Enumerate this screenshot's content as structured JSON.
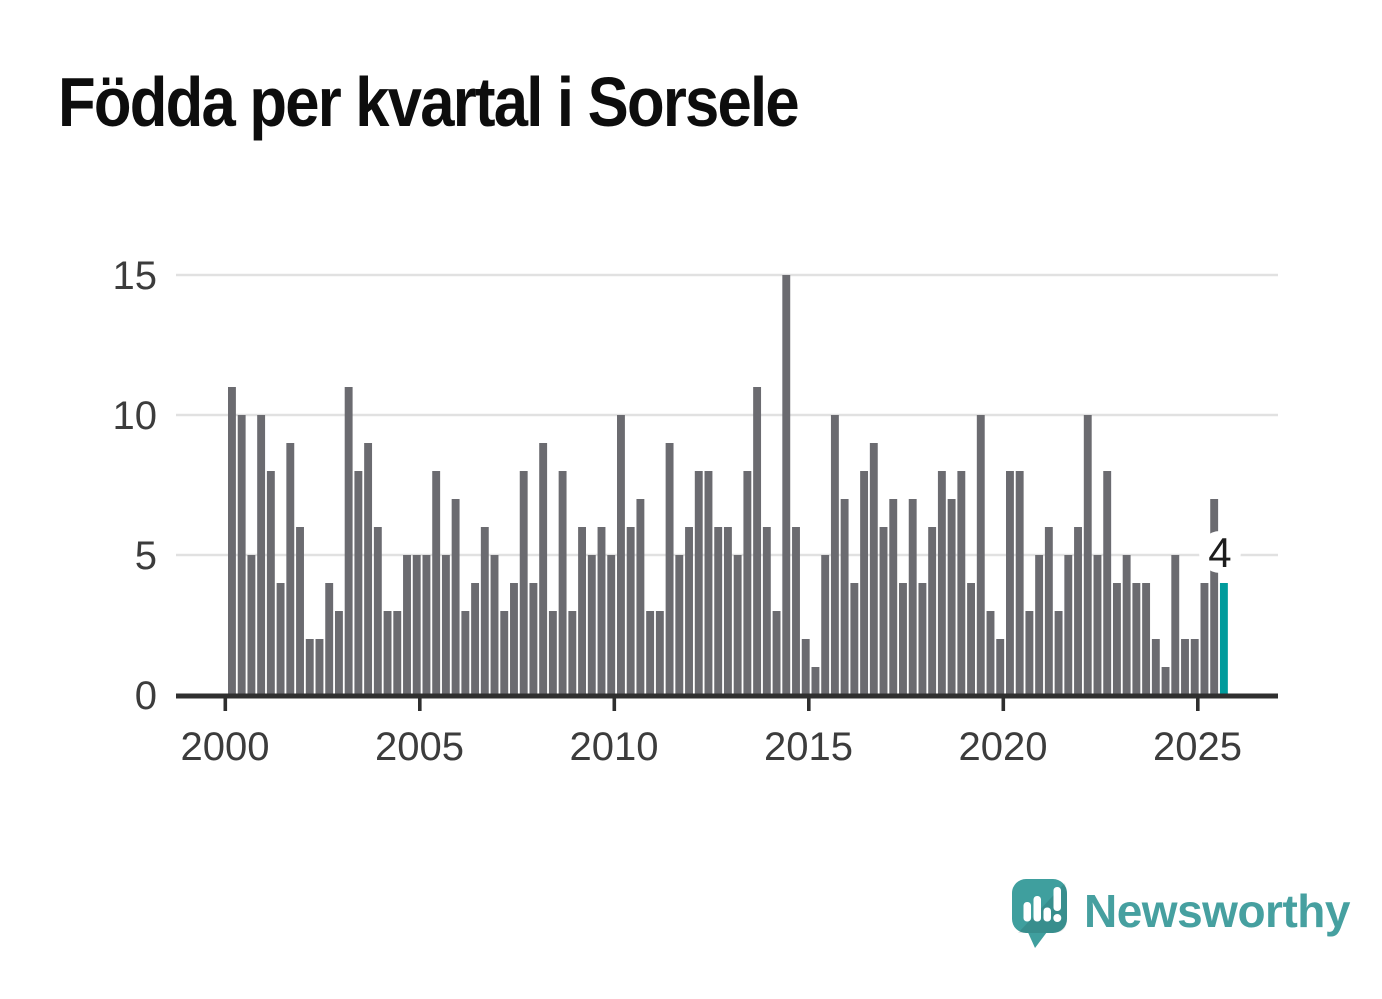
{
  "header": {
    "title": "Födda per kvartal i Sorsele"
  },
  "chart_data": {
    "type": "bar",
    "title": "Födda per kvartal i Sorsele",
    "xlabel": "",
    "ylabel": "",
    "frequency": "quarterly",
    "categories": [
      "2000-Q1",
      "2000-Q2",
      "2000-Q3",
      "2000-Q4",
      "2001-Q1",
      "2001-Q2",
      "2001-Q3",
      "2001-Q4",
      "2002-Q1",
      "2002-Q2",
      "2002-Q3",
      "2002-Q4",
      "2003-Q1",
      "2003-Q2",
      "2003-Q3",
      "2003-Q4",
      "2004-Q1",
      "2004-Q2",
      "2004-Q3",
      "2004-Q4",
      "2005-Q1",
      "2005-Q2",
      "2005-Q3",
      "2005-Q4",
      "2006-Q1",
      "2006-Q2",
      "2006-Q3",
      "2006-Q4",
      "2007-Q1",
      "2007-Q2",
      "2007-Q3",
      "2007-Q4",
      "2008-Q1",
      "2008-Q2",
      "2008-Q3",
      "2008-Q4",
      "2009-Q1",
      "2009-Q2",
      "2009-Q3",
      "2009-Q4",
      "2010-Q1",
      "2010-Q2",
      "2010-Q3",
      "2010-Q4",
      "2011-Q1",
      "2011-Q2",
      "2011-Q3",
      "2011-Q4",
      "2012-Q1",
      "2012-Q2",
      "2012-Q3",
      "2012-Q4",
      "2013-Q1",
      "2013-Q2",
      "2013-Q3",
      "2013-Q4",
      "2014-Q1",
      "2014-Q2",
      "2014-Q3",
      "2014-Q4",
      "2015-Q1",
      "2015-Q2",
      "2015-Q3",
      "2015-Q4",
      "2016-Q1",
      "2016-Q2",
      "2016-Q3",
      "2016-Q4",
      "2017-Q1",
      "2017-Q2",
      "2017-Q3",
      "2017-Q4",
      "2018-Q1",
      "2018-Q2",
      "2018-Q3",
      "2018-Q4",
      "2019-Q1",
      "2019-Q2",
      "2019-Q3",
      "2019-Q4",
      "2020-Q1",
      "2020-Q2",
      "2020-Q3",
      "2020-Q4",
      "2021-Q1",
      "2021-Q2",
      "2021-Q3",
      "2021-Q4",
      "2022-Q1",
      "2022-Q2",
      "2022-Q3",
      "2022-Q4",
      "2023-Q1",
      "2023-Q2",
      "2023-Q3",
      "2023-Q4",
      "2024-Q1",
      "2024-Q2",
      "2024-Q3",
      "2024-Q4",
      "2025-Q1",
      "2025-Q2",
      "2025-Q3"
    ],
    "values": [
      11,
      10,
      5,
      10,
      8,
      4,
      9,
      6,
      2,
      2,
      4,
      3,
      11,
      8,
      9,
      6,
      3,
      3,
      5,
      5,
      5,
      8,
      5,
      7,
      3,
      4,
      6,
      5,
      3,
      4,
      8,
      4,
      9,
      3,
      8,
      3,
      6,
      5,
      6,
      5,
      10,
      6,
      7,
      3,
      3,
      9,
      5,
      6,
      8,
      8,
      6,
      6,
      5,
      8,
      11,
      6,
      3,
      15,
      6,
      2,
      1,
      5,
      10,
      7,
      4,
      8,
      9,
      6,
      7,
      4,
      7,
      4,
      6,
      8,
      7,
      8,
      4,
      10,
      3,
      2,
      8,
      8,
      3,
      5,
      6,
      3,
      5,
      6,
      10,
      5,
      8,
      4,
      5,
      4,
      4,
      2,
      1,
      5,
      2,
      2,
      4,
      7,
      4
    ],
    "ylim": [
      0,
      15
    ],
    "yticks": [
      0,
      5,
      10,
      15
    ],
    "xticks": [
      "2000",
      "2005",
      "2010",
      "2015",
      "2020",
      "2025"
    ],
    "grid": "horizontal",
    "legend": "none",
    "highlight": {
      "category": "2025-Q3",
      "index": 102,
      "value": 4,
      "label": "4"
    },
    "colors": {
      "bar": "#6b6b70",
      "accent": "#009b9c",
      "axis": "#2f2f2f",
      "grid": "#e1e1e1",
      "tick_text": "#3c3c3c",
      "annotation_text": "#1d1d1d",
      "annotation_halo": "#ffffff"
    }
  },
  "footer": {
    "brand": "Newsworthy",
    "logo_icon": "speech-bubble-bar-chart-exclamation",
    "brand_color": "#46a0a0"
  }
}
